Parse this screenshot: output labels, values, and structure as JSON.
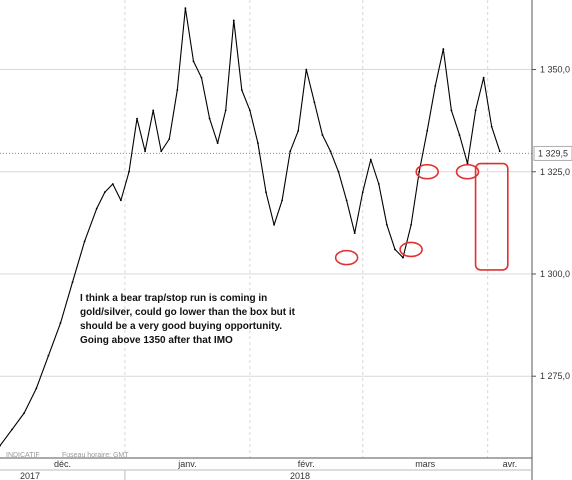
{
  "chart_data": {
    "type": "line",
    "instrument_label": "INDICATIF",
    "timezone_label": "Fuseau horaire: GMT",
    "y_range": [
      1255,
      1367
    ],
    "y_ticks": [
      "1 350,0",
      "1 325,0",
      "1 300,0",
      "1 275,0"
    ],
    "y_tick_values": [
      1350,
      1325,
      1300,
      1275
    ],
    "current_price": 1329.5,
    "current_price_label": "1 329,5",
    "x_month_labels": [
      "déc.",
      "janv.",
      "févr.",
      "mars",
      "avr."
    ],
    "x_year_labels": [
      "2017",
      "2018"
    ],
    "x_range": [
      "2017-12-01",
      "2018-04-12"
    ],
    "x_month_starts": [
      "2017-12-01",
      "2018-01-01",
      "2018-02-01",
      "2018-03-01",
      "2018-04-01"
    ],
    "series": [
      {
        "x": [
          "2017-12-01",
          "2017-12-04",
          "2017-12-07",
          "2017-12-10",
          "2017-12-13",
          "2017-12-16",
          "2017-12-19",
          "2017-12-22",
          "2017-12-25",
          "2017-12-27",
          "2017-12-29",
          "2017-12-31",
          "2018-01-02",
          "2018-01-04",
          "2018-01-06",
          "2018-01-08",
          "2018-01-10",
          "2018-01-12",
          "2018-01-14",
          "2018-01-16",
          "2018-01-18",
          "2018-01-20",
          "2018-01-22",
          "2018-01-24",
          "2018-01-26",
          "2018-01-28",
          "2018-01-30",
          "2018-02-01",
          "2018-02-03",
          "2018-02-05",
          "2018-02-07",
          "2018-02-09",
          "2018-02-11",
          "2018-02-13",
          "2018-02-15",
          "2018-02-17",
          "2018-02-19",
          "2018-02-21",
          "2018-02-23",
          "2018-02-25",
          "2018-02-27",
          "2018-03-01",
          "2018-03-03",
          "2018-03-05",
          "2018-03-07",
          "2018-03-09",
          "2018-03-11",
          "2018-03-13",
          "2018-03-15",
          "2018-03-17",
          "2018-03-19",
          "2018-03-21",
          "2018-03-23",
          "2018-03-25",
          "2018-03-27",
          "2018-03-29",
          "2018-03-31",
          "2018-04-02",
          "2018-04-04"
        ],
        "y": [
          1258,
          1262,
          1266,
          1272,
          1280,
          1288,
          1298,
          1308,
          1316,
          1320,
          1322,
          1318,
          1325,
          1338,
          1330,
          1340,
          1330,
          1333,
          1345,
          1365,
          1352,
          1348,
          1338,
          1332,
          1340,
          1362,
          1345,
          1340,
          1332,
          1320,
          1312,
          1318,
          1330,
          1335,
          1350,
          1342,
          1334,
          1330,
          1325,
          1318,
          1310,
          1320,
          1328,
          1322,
          1312,
          1306,
          1304,
          1312,
          1325,
          1335,
          1346,
          1355,
          1340,
          1334,
          1327,
          1340,
          1348,
          1336,
          1330
        ]
      }
    ],
    "marked_lows": [
      {
        "x": "2018-02-25",
        "y": 1304
      },
      {
        "x": "2018-03-13",
        "y": 1306
      },
      {
        "x": "2018-03-17",
        "y": 1325
      },
      {
        "x": "2018-03-27",
        "y": 1325
      }
    ],
    "projection_box": {
      "x": [
        "2018-03-29",
        "2018-04-06"
      ],
      "y": [
        1301,
        1327
      ]
    },
    "annotation_lines": [
      "I think a bear trap/stop run is coming in",
      "gold/silver, could go lower than the box but it",
      "should be a very good buying opportunity.",
      "Going above 1350 after that IMO"
    ],
    "colors": {
      "line": "#000000",
      "grid": "#d8d8d8",
      "price_line": "#e06a6a",
      "markup": "#e23030",
      "axis": "#555555"
    }
  }
}
